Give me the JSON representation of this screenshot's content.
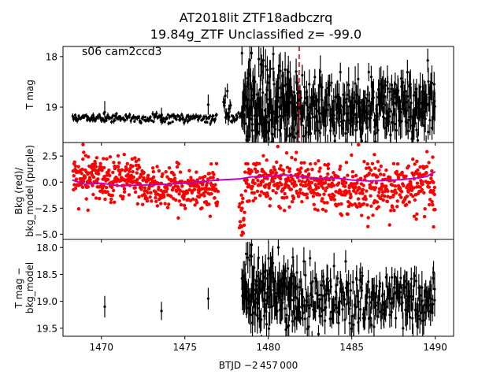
{
  "chart_data": {
    "type": "scatter",
    "title_line1": "AT2018lit  ZTF18adbczrq",
    "title_line2": "19.84g_ZTF Unclassified z= -99.0",
    "xlabel": "BTJD −2 457 000",
    "xlim": [
      1467.7,
      1491.1
    ],
    "xticks": [
      1470,
      1475,
      1480,
      1485,
      1490
    ],
    "xtick_labels": [
      "1470",
      "1475",
      "1480",
      "1485",
      "1490"
    ],
    "panels": [
      {
        "id": "tmag",
        "ylabel_lines": [
          "T mag"
        ],
        "ylim": [
          17.8,
          19.7
        ],
        "inverted": true,
        "yticks": [
          18,
          19
        ],
        "ytick_labels": [
          "18",
          "19"
        ],
        "annotation": "s06 cam2ccd3",
        "vline": {
          "x": 1481.85,
          "color": "#ff0000",
          "style": "dashed"
        },
        "series": [
          {
            "color": "#000000",
            "errorbars": true,
            "segments": [
              {
                "x0": 1468.25,
                "x1": 1476.95,
                "mean": 19.22,
                "scatter": 0.04,
                "err": 0.04,
                "n": 180
              },
              {
                "x0": 1477.3,
                "x1": 1477.75,
                "mean": 19.05,
                "scatter": 0.18,
                "err": 0.12,
                "n": 14
              },
              {
                "x0": 1477.75,
                "x1": 1478.4,
                "mean": 19.18,
                "scatter": 0.05,
                "err": 0.05,
                "n": 14
              },
              {
                "x0": 1478.4,
                "x1": 1481.8,
                "mean": 18.95,
                "scatter": 0.42,
                "err": 0.28,
                "n": 190
              },
              {
                "x0": 1481.8,
                "x1": 1490.0,
                "mean": 19.02,
                "scatter": 0.34,
                "err": 0.25,
                "n": 330
              }
            ],
            "points": [
              {
                "x": 1470.2,
                "y": 19.1,
                "err": 0.22
              },
              {
                "x": 1473.6,
                "y": 19.18,
                "err": 0.17
              },
              {
                "x": 1476.4,
                "y": 18.95,
                "err": 0.2
              },
              {
                "x": 1479.0,
                "y": 17.93,
                "err": 0.12
              },
              {
                "x": 1480.3,
                "y": 17.95,
                "err": 0.15
              }
            ]
          }
        ]
      },
      {
        "id": "bkg",
        "ylabel_lines": [
          "Bkg (red)/",
          "bkg_model (purple)"
        ],
        "ylim": [
          -5.5,
          3.8
        ],
        "inverted": false,
        "yticks": [
          2.5,
          0.0,
          -2.5,
          -5.0
        ],
        "ytick_labels": [
          "2.5",
          "0.0",
          "−2.5",
          "−5.0"
        ],
        "series": [
          {
            "name": "Bkg",
            "color": "#ff0000",
            "errorbars": false,
            "segments": [
              {
                "x0": 1468.3,
                "x1": 1472.5,
                "mean": 0.4,
                "scatter": 1.05,
                "n": 230
              },
              {
                "x0": 1472.5,
                "x1": 1477.0,
                "mean": -0.6,
                "scatter": 0.95,
                "n": 230
              },
              {
                "x0": 1478.25,
                "x1": 1478.6,
                "mean": -3.2,
                "scatter": 1.3,
                "n": 18
              },
              {
                "x0": 1478.6,
                "x1": 1484.0,
                "mean": 0.0,
                "scatter": 1.05,
                "n": 280
              },
              {
                "x0": 1484.0,
                "x1": 1490.0,
                "mean": -0.5,
                "scatter": 1.2,
                "n": 300
              }
            ],
            "points": [
              {
                "x": 1468.9,
                "y": 3.6
              },
              {
                "x": 1469.2,
                "y": -2.7
              },
              {
                "x": 1478.4,
                "y": -5.1
              },
              {
                "x": 1478.45,
                "y": -4.8
              },
              {
                "x": 1481.1,
                "y": 2.8
              },
              {
                "x": 1489.9,
                "y": -4.3
              },
              {
                "x": 1489.85,
                "y": 2.4
              },
              {
                "x": 1488.9,
                "y": 2.0
              }
            ]
          },
          {
            "name": "bkg_model",
            "color": "#bf00bf",
            "line": true,
            "x": [
              1468.25,
              1469.0,
              1470.0,
              1471.0,
              1472.0,
              1473.0,
              1474.0,
              1475.0,
              1476.0,
              1477.0,
              1478.25,
              1479.0,
              1480.0,
              1481.0,
              1482.0,
              1483.0,
              1484.0,
              1485.0,
              1486.0,
              1487.0,
              1488.0,
              1489.0,
              1489.5,
              1490.0
            ],
            "y": [
              0.2,
              -0.2,
              -0.1,
              -0.35,
              -0.3,
              -0.25,
              -0.2,
              -0.1,
              0.05,
              0.2,
              0.3,
              0.5,
              0.55,
              0.7,
              0.5,
              0.35,
              0.4,
              0.2,
              0.1,
              0.15,
              0.25,
              0.4,
              0.55,
              1.0
            ]
          }
        ]
      },
      {
        "id": "diff",
        "ylabel_lines": [
          "T mag −",
          "bkg_model"
        ],
        "ylim": [
          17.85,
          19.65
        ],
        "inverted": true,
        "yticks": [
          18.0,
          18.5,
          19.0,
          19.5
        ],
        "ytick_labels": [
          "18.0",
          "18.5",
          "19.0",
          "19.5"
        ],
        "series": [
          {
            "color": "#000000",
            "errorbars": true,
            "segments": [
              {
                "x0": 1478.4,
                "x1": 1481.8,
                "mean": 18.85,
                "scatter": 0.33,
                "err": 0.25,
                "n": 150
              },
              {
                "x0": 1481.8,
                "x1": 1490.0,
                "mean": 19.0,
                "scatter": 0.28,
                "err": 0.22,
                "n": 240
              }
            ],
            "points": [
              {
                "x": 1470.2,
                "y": 19.1,
                "err": 0.2
              },
              {
                "x": 1473.6,
                "y": 19.18,
                "err": 0.17
              },
              {
                "x": 1476.4,
                "y": 18.95,
                "err": 0.2
              },
              {
                "x": 1479.0,
                "y": 17.95,
                "err": 0.12
              },
              {
                "x": 1480.6,
                "y": 18.0,
                "err": 0.15
              },
              {
                "x": 1482.5,
                "y": 18.2,
                "err": 0.15
              }
            ]
          }
        ]
      }
    ]
  }
}
